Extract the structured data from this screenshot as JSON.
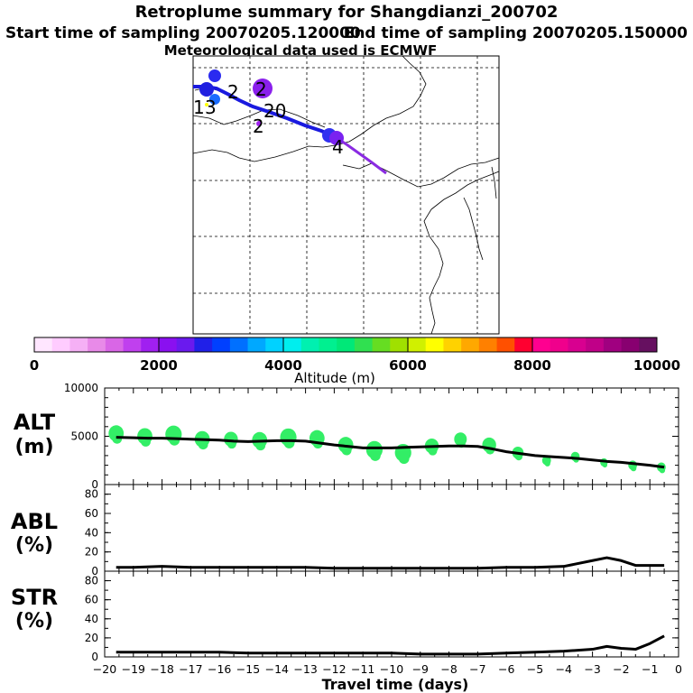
{
  "header": {
    "title": "Retroplume summary for Shangdianzi_200702",
    "start_label": "Start time of sampling 20070205.120000",
    "end_label": "End time of sampling 20070205.150000",
    "met_label": "Meteorological data used is ECMWF"
  },
  "map_labels": [
    "1",
    "3",
    "2",
    "2",
    "20",
    "2",
    "4"
  ],
  "colorbar": {
    "ticks": [
      "0",
      "2000",
      "4000",
      "6000",
      "8000",
      "10000"
    ],
    "label": "Altitude (m)",
    "colors": [
      "#ffe6ff",
      "#ffccff",
      "#f5b0f5",
      "#e88ae8",
      "#d966e6",
      "#c040ee",
      "#a020f0",
      "#8a10f0",
      "#6a1aee",
      "#2020e8",
      "#0040ff",
      "#0070ff",
      "#00a8ff",
      "#00d2ff",
      "#00eeee",
      "#00f0b0",
      "#00f090",
      "#00e878",
      "#30e050",
      "#66dd22",
      "#a0e000",
      "#d0f000",
      "#ffff00",
      "#ffd200",
      "#ffa800",
      "#ff8000",
      "#ff5000",
      "#ff0030",
      "#ff0090",
      "#f0008c",
      "#d80090",
      "#c00088",
      "#a00080",
      "#880070",
      "#661060"
    ]
  },
  "panels": {
    "alt": {
      "label1": "ALT",
      "label2": "(m)"
    },
    "abl": {
      "label1": "ABL",
      "label2": "(%)"
    },
    "str": {
      "label1": "STR",
      "label2": "(%)"
    }
  },
  "x_axis": {
    "label": "Travel time (days)",
    "ticks": [
      "−20",
      "−19",
      "−18",
      "−17",
      "−16",
      "−15",
      "−14",
      "−13",
      "−12",
      "−11",
      "−10",
      "−9",
      "−8",
      "−7",
      "−6",
      "−5",
      "−4",
      "−3",
      "−2",
      "−1",
      "0"
    ]
  },
  "chart_data": [
    {
      "type": "line",
      "title": "ALT",
      "ylabel": "(m)",
      "ylim": [
        0,
        10000
      ],
      "yticks": [
        "10000",
        "5000",
        "0"
      ],
      "x": [
        -19.6,
        -19,
        -18.5,
        -18,
        -17.5,
        -17,
        -16.5,
        -16,
        -15.5,
        -15,
        -14.5,
        -14,
        -13.5,
        -13,
        -12.5,
        -12,
        -11.5,
        -11,
        -10.5,
        -10,
        -9.5,
        -9,
        -8.5,
        -8,
        -7.5,
        -7,
        -6.5,
        -6,
        -5.5,
        -5,
        -4.5,
        -4,
        -3.5,
        -3,
        -2.5,
        -2,
        -1.5,
        -1,
        -0.5
      ],
      "values": [
        4900,
        4850,
        4800,
        4800,
        4750,
        4700,
        4650,
        4600,
        4500,
        4450,
        4500,
        4550,
        4550,
        4500,
        4300,
        4100,
        3950,
        3800,
        3800,
        3800,
        3850,
        3900,
        3950,
        4000,
        4000,
        3950,
        3700,
        3400,
        3200,
        3000,
        2900,
        2800,
        2700,
        2550,
        2400,
        2300,
        2150,
        2000,
        1800
      ],
      "clusters": [
        {
          "x": -19.6,
          "y": 5300,
          "s": 12
        },
        {
          "x": -18.6,
          "y": 5000,
          "s": 12
        },
        {
          "x": -17.6,
          "y": 5200,
          "s": 13
        },
        {
          "x": -16.6,
          "y": 4700,
          "s": 12
        },
        {
          "x": -15.6,
          "y": 4700,
          "s": 11
        },
        {
          "x": -14.6,
          "y": 4600,
          "s": 12
        },
        {
          "x": -13.6,
          "y": 4900,
          "s": 13
        },
        {
          "x": -12.6,
          "y": 4800,
          "s": 12
        },
        {
          "x": -11.6,
          "y": 4100,
          "s": 12
        },
        {
          "x": -10.6,
          "y": 3600,
          "s": 13
        },
        {
          "x": -9.6,
          "y": 3300,
          "s": 13
        },
        {
          "x": -8.6,
          "y": 4000,
          "s": 11
        },
        {
          "x": -7.6,
          "y": 4700,
          "s": 10
        },
        {
          "x": -6.6,
          "y": 4100,
          "s": 11
        },
        {
          "x": -5.6,
          "y": 3300,
          "s": 9
        },
        {
          "x": -4.6,
          "y": 2500,
          "s": 7
        },
        {
          "x": -3.6,
          "y": 2900,
          "s": 7
        },
        {
          "x": -2.6,
          "y": 2300,
          "s": 6
        },
        {
          "x": -1.6,
          "y": 2000,
          "s": 7
        },
        {
          "x": -0.6,
          "y": 1800,
          "s": 7
        }
      ]
    },
    {
      "type": "line",
      "title": "ABL",
      "ylabel": "(%)",
      "ylim": [
        0,
        90
      ],
      "yticks": [
        "80",
        "60",
        "40",
        "20",
        "0"
      ],
      "x": [
        -19.6,
        -19,
        -18,
        -17,
        -16,
        -15,
        -14,
        -13,
        -12,
        -11,
        -10,
        -9,
        -8,
        -7,
        -6,
        -5,
        -4,
        -3,
        -2.5,
        -2,
        -1.5,
        -1,
        -0.5
      ],
      "values": [
        4,
        4,
        5,
        4,
        4,
        4,
        4,
        4,
        3,
        3,
        3,
        3,
        3,
        3,
        4,
        4,
        5,
        11,
        14,
        11,
        6,
        6,
        6
      ]
    },
    {
      "type": "line",
      "title": "STR",
      "ylabel": "(%)",
      "ylim": [
        0,
        90
      ],
      "yticks": [
        "80",
        "60",
        "40",
        "20",
        "0"
      ],
      "x": [
        -19.6,
        -19,
        -18,
        -17,
        -16,
        -15,
        -14,
        -13,
        -12,
        -11,
        -10,
        -9,
        -8,
        -7,
        -6,
        -5,
        -4,
        -3,
        -2.5,
        -2,
        -1.5,
        -1,
        -0.5
      ],
      "values": [
        5,
        5,
        5,
        5,
        5,
        4,
        4,
        4,
        4,
        4,
        4,
        3,
        3,
        3,
        4,
        5,
        6,
        8,
        11,
        9,
        8,
        14,
        22
      ]
    }
  ]
}
